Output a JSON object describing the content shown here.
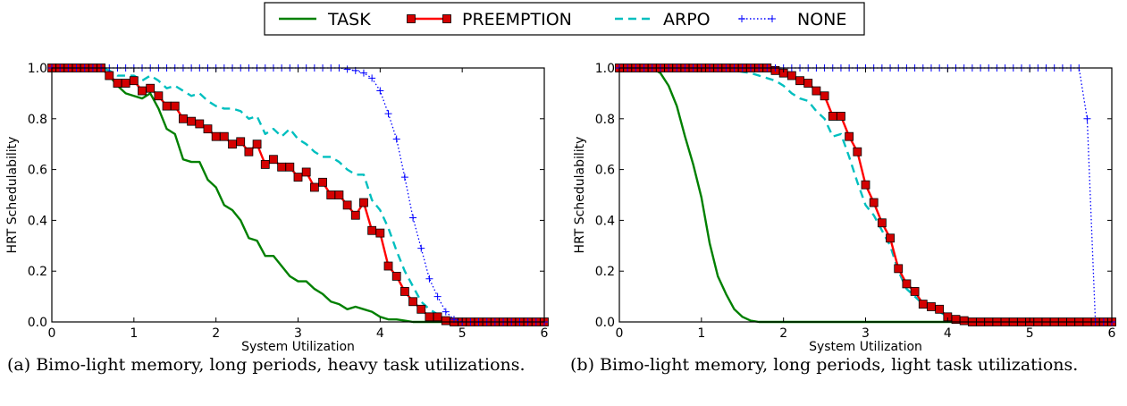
{
  "legend": {
    "entries": [
      {
        "label": "TASK",
        "color": "#008000",
        "style": "solid"
      },
      {
        "label": "PREEMPTION",
        "color": "#ff0000",
        "style": "solid-square",
        "marker_fill": "#d40000"
      },
      {
        "label": "ARPO",
        "color": "#00bfbf",
        "style": "dashed"
      },
      {
        "label": "NONE",
        "color": "#0000ff",
        "style": "dotted-plus"
      }
    ]
  },
  "captions": {
    "a": "(a) Bimo-light memory, long periods, heavy task utilizations.",
    "b": "(b) Bimo-light memory, long periods, light task utilizations."
  },
  "chart_data": [
    {
      "type": "line",
      "xlabel": "System Utilization",
      "ylabel": "HRT Schedulability",
      "xlim": [
        0,
        6
      ],
      "ylim": [
        0,
        1.0
      ],
      "xticks": [
        "0",
        "1",
        "2",
        "3",
        "4",
        "5",
        "6"
      ],
      "yticks": [
        "0.0",
        "0.2",
        "0.4",
        "0.6",
        "0.8",
        "1.0"
      ],
      "grid": false,
      "series": [
        {
          "name": "TASK",
          "x": [
            0,
            0.1,
            0.2,
            0.3,
            0.4,
            0.5,
            0.6,
            0.7,
            0.8,
            0.9,
            1.0,
            1.1,
            1.2,
            1.3,
            1.4,
            1.5,
            1.6,
            1.7,
            1.8,
            1.9,
            2.0,
            2.1,
            2.2,
            2.3,
            2.4,
            2.5,
            2.6,
            2.7,
            2.8,
            2.9,
            3.0,
            3.1,
            3.2,
            3.3,
            3.4,
            3.5,
            3.6,
            3.7,
            3.8,
            3.9,
            4.0,
            4.1,
            4.2,
            4.3,
            4.4,
            4.5,
            4.6,
            4.7,
            4.8,
            4.9,
            5.0,
            5.1,
            5.2,
            5.3,
            5.4,
            5.5,
            5.6,
            5.7,
            5.8,
            5.9,
            6.0
          ],
          "y": [
            1,
            1,
            1,
            1,
            1,
            1,
            1,
            0.97,
            0.93,
            0.9,
            0.89,
            0.88,
            0.9,
            0.84,
            0.76,
            0.74,
            0.64,
            0.63,
            0.63,
            0.56,
            0.53,
            0.46,
            0.44,
            0.4,
            0.33,
            0.32,
            0.26,
            0.26,
            0.22,
            0.18,
            0.16,
            0.16,
            0.13,
            0.11,
            0.08,
            0.07,
            0.05,
            0.06,
            0.05,
            0.04,
            0.02,
            0.01,
            0.01,
            0.005,
            0,
            0,
            0,
            0,
            0,
            0,
            0,
            0,
            0,
            0,
            0,
            0,
            0,
            0,
            0,
            0,
            0
          ]
        },
        {
          "name": "PREEMPTION",
          "x": [
            0,
            0.1,
            0.2,
            0.3,
            0.4,
            0.5,
            0.6,
            0.7,
            0.8,
            0.9,
            1.0,
            1.1,
            1.2,
            1.3,
            1.4,
            1.5,
            1.6,
            1.7,
            1.8,
            1.9,
            2.0,
            2.1,
            2.2,
            2.3,
            2.4,
            2.5,
            2.6,
            2.7,
            2.8,
            2.9,
            3.0,
            3.1,
            3.2,
            3.3,
            3.4,
            3.5,
            3.6,
            3.7,
            3.8,
            3.9,
            4.0,
            4.1,
            4.2,
            4.3,
            4.4,
            4.5,
            4.6,
            4.7,
            4.8,
            4.9,
            5.0,
            5.1,
            5.2,
            5.3,
            5.4,
            5.5,
            5.6,
            5.7,
            5.8,
            5.9,
            6.0
          ],
          "y": [
            1,
            1,
            1,
            1,
            1,
            1,
            1,
            0.97,
            0.94,
            0.94,
            0.95,
            0.91,
            0.92,
            0.89,
            0.85,
            0.85,
            0.8,
            0.79,
            0.78,
            0.76,
            0.73,
            0.73,
            0.7,
            0.71,
            0.67,
            0.7,
            0.62,
            0.64,
            0.61,
            0.61,
            0.57,
            0.59,
            0.53,
            0.55,
            0.5,
            0.5,
            0.46,
            0.42,
            0.47,
            0.36,
            0.35,
            0.22,
            0.18,
            0.12,
            0.08,
            0.05,
            0.02,
            0.02,
            0.005,
            0,
            0,
            0,
            0,
            0,
            0,
            0,
            0,
            0,
            0,
            0,
            0
          ]
        },
        {
          "name": "ARPO",
          "x": [
            0,
            0.1,
            0.2,
            0.3,
            0.4,
            0.5,
            0.6,
            0.7,
            0.8,
            0.9,
            1.0,
            1.1,
            1.2,
            1.3,
            1.4,
            1.5,
            1.6,
            1.7,
            1.8,
            1.9,
            2.0,
            2.1,
            2.2,
            2.3,
            2.4,
            2.5,
            2.6,
            2.7,
            2.8,
            2.9,
            3.0,
            3.1,
            3.2,
            3.3,
            3.4,
            3.5,
            3.6,
            3.7,
            3.8,
            3.9,
            4.0,
            4.1,
            4.2,
            4.3,
            4.4,
            4.5,
            4.6,
            4.7,
            4.8,
            4.9,
            5.0,
            5.1,
            5.2,
            5.3,
            5.4,
            5.5,
            5.6,
            5.7,
            5.8,
            5.9,
            6.0
          ],
          "y": [
            1,
            1,
            1,
            1,
            1,
            1,
            1,
            0.99,
            0.97,
            0.97,
            0.97,
            0.95,
            0.97,
            0.95,
            0.92,
            0.93,
            0.91,
            0.89,
            0.9,
            0.87,
            0.85,
            0.84,
            0.84,
            0.83,
            0.8,
            0.81,
            0.74,
            0.76,
            0.73,
            0.76,
            0.72,
            0.7,
            0.67,
            0.65,
            0.65,
            0.63,
            0.6,
            0.58,
            0.58,
            0.48,
            0.44,
            0.37,
            0.28,
            0.2,
            0.14,
            0.08,
            0.05,
            0.03,
            0.01,
            0,
            0,
            0,
            0,
            0,
            0,
            0,
            0,
            0,
            0,
            0,
            0
          ]
        },
        {
          "name": "NONE",
          "x": [
            0,
            0.1,
            0.2,
            0.3,
            0.4,
            0.5,
            0.6,
            0.7,
            0.8,
            0.9,
            1.0,
            1.1,
            1.2,
            1.3,
            1.4,
            1.5,
            1.6,
            1.7,
            1.8,
            1.9,
            2.0,
            2.1,
            2.2,
            2.3,
            2.4,
            2.5,
            2.6,
            2.7,
            2.8,
            2.9,
            3.0,
            3.1,
            3.2,
            3.3,
            3.4,
            3.5,
            3.6,
            3.7,
            3.8,
            3.9,
            4.0,
            4.1,
            4.2,
            4.3,
            4.4,
            4.5,
            4.6,
            4.7,
            4.8,
            4.9,
            5.0,
            5.1,
            5.2,
            5.3,
            5.4,
            5.5,
            5.6,
            5.7,
            5.8,
            5.9,
            6.0
          ],
          "y": [
            1,
            1,
            1,
            1,
            1,
            1,
            1,
            1,
            1,
            1,
            1,
            1,
            1,
            1,
            1,
            1,
            1,
            1,
            1,
            1,
            1,
            1,
            1,
            1,
            1,
            1,
            1,
            1,
            1,
            1,
            1,
            1,
            1,
            1,
            1,
            1,
            0.995,
            0.99,
            0.98,
            0.96,
            0.91,
            0.82,
            0.72,
            0.57,
            0.41,
            0.29,
            0.17,
            0.1,
            0.04,
            0.01,
            0,
            0,
            0,
            0,
            0,
            0,
            0,
            0,
            0,
            0,
            0
          ]
        }
      ]
    },
    {
      "type": "line",
      "xlabel": "System Utilization",
      "ylabel": "HRT Schedulability",
      "xlim": [
        0,
        6
      ],
      "ylim": [
        0,
        1.0
      ],
      "xticks": [
        "0",
        "1",
        "2",
        "3",
        "4",
        "5",
        "6"
      ],
      "yticks": [
        "0.0",
        "0.2",
        "0.4",
        "0.6",
        "0.8",
        "1.0"
      ],
      "grid": false,
      "series": [
        {
          "name": "TASK",
          "x": [
            0,
            0.1,
            0.2,
            0.3,
            0.4,
            0.5,
            0.6,
            0.7,
            0.8,
            0.9,
            1.0,
            1.1,
            1.2,
            1.3,
            1.4,
            1.5,
            1.6,
            1.7,
            1.8,
            1.9,
            2.0,
            2.1,
            2.2,
            2.3,
            2.4,
            2.5,
            2.6,
            2.7,
            2.8,
            2.9,
            3.0,
            3.1,
            3.2,
            3.3,
            3.4,
            3.5,
            3.6,
            3.7,
            3.8,
            3.9,
            4.0,
            4.1,
            4.2,
            4.3,
            4.4,
            4.5,
            4.6,
            4.7,
            4.8,
            4.9,
            5.0,
            5.1,
            5.2,
            5.3,
            5.4,
            5.5,
            5.6,
            5.7,
            5.8,
            5.9,
            6.0
          ],
          "y": [
            1,
            1,
            1,
            1,
            1,
            0.98,
            0.93,
            0.85,
            0.73,
            0.62,
            0.49,
            0.31,
            0.18,
            0.11,
            0.05,
            0.02,
            0.005,
            0,
            0,
            0,
            0,
            0,
            0,
            0,
            0,
            0,
            0,
            0,
            0,
            0,
            0,
            0,
            0,
            0,
            0,
            0,
            0,
            0,
            0,
            0,
            0,
            0,
            0,
            0,
            0,
            0,
            0,
            0,
            0,
            0,
            0,
            0,
            0,
            0,
            0,
            0,
            0,
            0,
            0,
            0,
            0
          ]
        },
        {
          "name": "PREEMPTION",
          "x": [
            0,
            0.1,
            0.2,
            0.3,
            0.4,
            0.5,
            0.6,
            0.7,
            0.8,
            0.9,
            1.0,
            1.1,
            1.2,
            1.3,
            1.4,
            1.5,
            1.6,
            1.7,
            1.8,
            1.9,
            2.0,
            2.1,
            2.2,
            2.3,
            2.4,
            2.5,
            2.6,
            2.7,
            2.8,
            2.9,
            3.0,
            3.1,
            3.2,
            3.3,
            3.4,
            3.5,
            3.6,
            3.7,
            3.8,
            3.9,
            4.0,
            4.1,
            4.2,
            4.3,
            4.4,
            4.5,
            4.6,
            4.7,
            4.8,
            4.9,
            5.0,
            5.1,
            5.2,
            5.3,
            5.4,
            5.5,
            5.6,
            5.7,
            5.8,
            5.9,
            6.0
          ],
          "y": [
            1,
            1,
            1,
            1,
            1,
            1,
            1,
            1,
            1,
            1,
            1,
            1,
            1,
            1,
            1,
            1,
            1,
            1,
            1,
            0.99,
            0.98,
            0.97,
            0.95,
            0.94,
            0.91,
            0.89,
            0.81,
            0.81,
            0.73,
            0.67,
            0.54,
            0.47,
            0.39,
            0.33,
            0.21,
            0.15,
            0.12,
            0.07,
            0.06,
            0.05,
            0.02,
            0.01,
            0.005,
            0,
            0,
            0,
            0,
            0,
            0,
            0,
            0,
            0,
            0,
            0,
            0,
            0,
            0,
            0,
            0,
            0,
            0
          ]
        },
        {
          "name": "ARPO",
          "x": [
            0,
            0.1,
            0.2,
            0.3,
            0.4,
            0.5,
            0.6,
            0.7,
            0.8,
            0.9,
            1.0,
            1.1,
            1.2,
            1.3,
            1.4,
            1.5,
            1.6,
            1.7,
            1.8,
            1.9,
            2.0,
            2.1,
            2.2,
            2.3,
            2.4,
            2.5,
            2.6,
            2.7,
            2.8,
            2.9,
            3.0,
            3.1,
            3.2,
            3.3,
            3.4,
            3.5,
            3.6,
            3.7,
            3.8,
            3.9,
            4.0,
            4.1,
            4.2,
            4.3,
            4.4,
            4.5,
            4.6,
            4.7,
            4.8,
            4.9,
            5.0,
            5.1,
            5.2,
            5.3,
            5.4,
            5.5,
            5.6,
            5.7,
            5.8,
            5.9,
            6.0
          ],
          "y": [
            1,
            1,
            1,
            1,
            1,
            1,
            1,
            1,
            1,
            1,
            1,
            1,
            1,
            0.995,
            0.99,
            0.985,
            0.98,
            0.97,
            0.96,
            0.95,
            0.93,
            0.9,
            0.88,
            0.87,
            0.83,
            0.8,
            0.73,
            0.74,
            0.65,
            0.55,
            0.46,
            0.42,
            0.36,
            0.3,
            0.2,
            0.13,
            0.1,
            0.07,
            0.05,
            0.04,
            0.02,
            0.01,
            0,
            0,
            0,
            0,
            0,
            0,
            0,
            0,
            0,
            0,
            0,
            0,
            0,
            0,
            0,
            0,
            0,
            0,
            0
          ]
        },
        {
          "name": "NONE",
          "x": [
            0,
            0.1,
            0.2,
            0.3,
            0.4,
            0.5,
            0.6,
            0.7,
            0.8,
            0.9,
            1.0,
            1.1,
            1.2,
            1.3,
            1.4,
            1.5,
            1.6,
            1.7,
            1.8,
            1.9,
            2.0,
            2.1,
            2.2,
            2.3,
            2.4,
            2.5,
            2.6,
            2.7,
            2.8,
            2.9,
            3.0,
            3.1,
            3.2,
            3.3,
            3.4,
            3.5,
            3.6,
            3.7,
            3.8,
            3.9,
            4.0,
            4.1,
            4.2,
            4.3,
            4.4,
            4.5,
            4.6,
            4.7,
            4.8,
            4.9,
            5.0,
            5.1,
            5.2,
            5.3,
            5.4,
            5.5,
            5.6,
            5.7,
            5.8,
            5.9,
            6.0
          ],
          "y": [
            1,
            1,
            1,
            1,
            1,
            1,
            1,
            1,
            1,
            1,
            1,
            1,
            1,
            1,
            1,
            1,
            1,
            1,
            1,
            1,
            1,
            1,
            1,
            1,
            1,
            1,
            1,
            1,
            1,
            1,
            1,
            1,
            1,
            1,
            1,
            1,
            1,
            1,
            1,
            1,
            1,
            1,
            1,
            1,
            1,
            1,
            1,
            1,
            1,
            1,
            1,
            1,
            1,
            1,
            1,
            1,
            1,
            0.8,
            0,
            0,
            0
          ]
        }
      ]
    }
  ]
}
